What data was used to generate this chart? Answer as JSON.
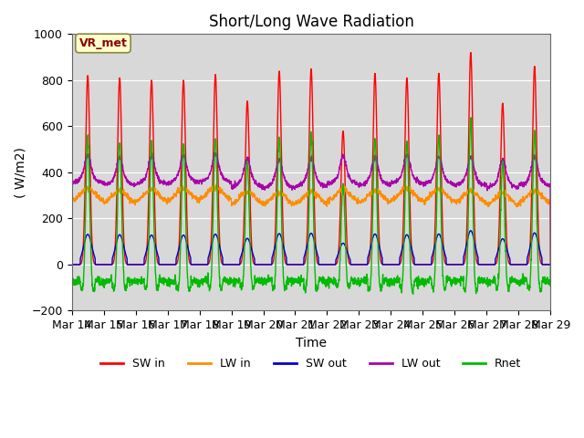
{
  "title": "Short/Long Wave Radiation",
  "ylabel": "( W/m2)",
  "xlabel": "Time",
  "ylim": [
    -200,
    1000
  ],
  "annotation": "VR_met",
  "x_tick_labels": [
    "Mar 14",
    "Mar 15",
    "Mar 16",
    "Mar 17",
    "Mar 18",
    "Mar 19",
    "Mar 20",
    "Mar 21",
    "Mar 22",
    "Mar 23",
    "Mar 24",
    "Mar 25",
    "Mar 26",
    "Mar 27",
    "Mar 28",
    "Mar 29"
  ],
  "series_colors": {
    "SW in": "#ff0000",
    "LW in": "#ff8c00",
    "SW out": "#0000cc",
    "LW out": "#aa00aa",
    "Rnet": "#00bb00"
  },
  "background_color": "#d8d8d8",
  "title_fontsize": 12,
  "axis_fontsize": 10,
  "tick_fontsize": 9,
  "sw_peaks": [
    820,
    810,
    800,
    800,
    825,
    710,
    840,
    850,
    580,
    830,
    810,
    830,
    920,
    700,
    860
  ],
  "lw_in_base": [
    305,
    295,
    300,
    305,
    310,
    290,
    285,
    290,
    300,
    295,
    305,
    300,
    295,
    285,
    295
  ],
  "lw_out_base": [
    370,
    360,
    365,
    370,
    375,
    355,
    350,
    355,
    365,
    360,
    370,
    365,
    360,
    350,
    360
  ]
}
